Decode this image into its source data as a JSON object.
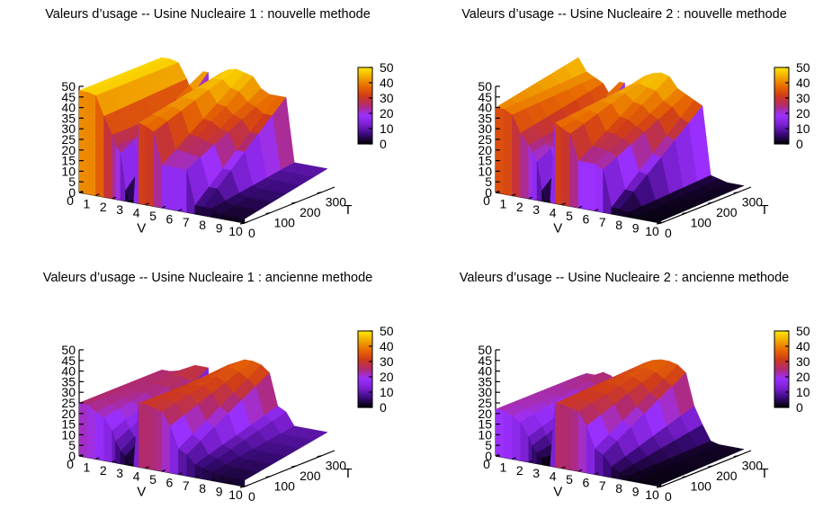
{
  "chart_data": [
    {
      "type": "surface3d",
      "title": "Valeurs d’usage -- Usine Nucleaire 1 : nouvelle methode",
      "xlabel": "V",
      "ylabel": "T",
      "zlabel": "",
      "xlim": [
        0,
        10
      ],
      "ylim": [
        0,
        350
      ],
      "zlim": [
        0,
        50
      ],
      "x_ticks": [
        "0",
        "1",
        "2",
        "3",
        "4",
        "5",
        "6",
        "7",
        "8",
        "9",
        "10"
      ],
      "y_ticks": [
        "0",
        "100",
        "200",
        "300"
      ],
      "z_ticks": [
        "0",
        "5",
        "10",
        "15",
        "20",
        "25",
        "30",
        "35",
        "40",
        "45",
        "50"
      ],
      "colorbar": {
        "ticks": [
          "0",
          "10",
          "20",
          "30",
          "40",
          "50"
        ],
        "range": [
          0,
          50
        ]
      },
      "profile_x": [
        0,
        0.5,
        1,
        1.5,
        2,
        2.2,
        2.5,
        2.8,
        3,
        3.3,
        3.6,
        4,
        4.5,
        5,
        5.5,
        6,
        6.5,
        7,
        7.5,
        8,
        8.5,
        9,
        10
      ],
      "surface_back": [
        48,
        48,
        47,
        40,
        30,
        28,
        45,
        45,
        0,
        0,
        46,
        48,
        49,
        48,
        47,
        42,
        40,
        40,
        40,
        10,
        10,
        10,
        10
      ],
      "surface_front": [
        48,
        48,
        47,
        38,
        30,
        25,
        22,
        5,
        0,
        0,
        38,
        37,
        35,
        20,
        20,
        20,
        20,
        4,
        4,
        4,
        2,
        2,
        2
      ]
    },
    {
      "type": "surface3d",
      "title": "Valeurs d’usage -- Usine Nucleaire 2 : nouvelle methode",
      "xlabel": "V",
      "ylabel": "T",
      "zlabel": "",
      "xlim": [
        0,
        10
      ],
      "ylim": [
        0,
        350
      ],
      "zlim": [
        0,
        50
      ],
      "x_ticks": [
        "0",
        "1",
        "2",
        "3",
        "4",
        "5",
        "6",
        "7",
        "8",
        "9",
        "10"
      ],
      "y_ticks": [
        "0",
        "100",
        "200",
        "300"
      ],
      "z_ticks": [
        "0",
        "5",
        "10",
        "15",
        "20",
        "25",
        "30",
        "35",
        "40",
        "45",
        "50"
      ],
      "colorbar": {
        "ticks": [
          "0",
          "10",
          "20",
          "30",
          "40",
          "50"
        ],
        "range": [
          0,
          50
        ]
      },
      "profile_x": [
        0,
        0.5,
        1,
        1.5,
        2,
        2.2,
        2.5,
        2.8,
        3,
        3.3,
        3.6,
        4,
        4.5,
        5,
        5.5,
        6,
        6.5,
        7,
        7.5,
        8,
        8.5,
        9,
        10
      ],
      "surface_back": [
        48,
        42,
        40,
        38,
        32,
        30,
        40,
        40,
        0,
        0,
        42,
        45,
        47,
        48,
        47,
        42,
        40,
        38,
        36,
        4,
        3,
        2,
        2
      ],
      "surface_front": [
        40,
        40,
        38,
        30,
        25,
        22,
        18,
        5,
        0,
        0,
        38,
        36,
        34,
        22,
        22,
        22,
        20,
        3,
        3,
        2,
        1,
        1,
        1
      ]
    },
    {
      "type": "surface3d",
      "title": "Valeurs d’usage -- Usine Nucleaire 1 : ancienne methode",
      "xlabel": "V",
      "ylabel": "T",
      "zlabel": "",
      "xlim": [
        0,
        10
      ],
      "ylim": [
        0,
        350
      ],
      "zlim": [
        0,
        50
      ],
      "x_ticks": [
        "0",
        "1",
        "2",
        "3",
        "4",
        "5",
        "6",
        "7",
        "8",
        "9",
        "10"
      ],
      "y_ticks": [
        "0",
        "100",
        "200",
        "300"
      ],
      "z_ticks": [
        "0",
        "5",
        "10",
        "15",
        "20",
        "25",
        "30",
        "35",
        "40",
        "45",
        "50"
      ],
      "colorbar": {
        "ticks": [
          "0",
          "10",
          "20",
          "30",
          "40",
          "50"
        ],
        "range": [
          0,
          50
        ]
      },
      "profile_x": [
        0,
        0.5,
        1,
        1.5,
        2,
        2.2,
        2.5,
        2.8,
        3,
        3.3,
        3.6,
        4,
        4.5,
        5,
        5.5,
        6,
        6.5,
        7,
        7.5,
        8,
        8.5,
        9,
        10
      ],
      "surface_back": [
        25,
        25,
        26,
        28,
        30,
        30,
        30,
        30,
        0,
        0,
        30,
        33,
        35,
        37,
        37,
        36,
        33,
        18,
        16,
        10,
        10,
        10,
        10
      ],
      "surface_front": [
        25,
        25,
        22,
        20,
        15,
        10,
        6,
        4,
        0,
        0,
        30,
        30,
        29,
        28,
        22,
        12,
        10,
        6,
        5,
        4,
        3,
        3,
        3
      ]
    },
    {
      "type": "surface3d",
      "title": "Valeurs d’usage -- Usine Nucleaire 2 : ancienne methode",
      "xlabel": "V",
      "ylabel": "T",
      "zlabel": "",
      "xlim": [
        0,
        10
      ],
      "ylim": [
        0,
        350
      ],
      "zlim": [
        0,
        50
      ],
      "x_ticks": [
        "0",
        "1",
        "2",
        "3",
        "4",
        "5",
        "6",
        "7",
        "8",
        "9",
        "10"
      ],
      "y_ticks": [
        "0",
        "100",
        "200",
        "300"
      ],
      "z_ticks": [
        "0",
        "5",
        "10",
        "15",
        "20",
        "25",
        "30",
        "35",
        "40",
        "45",
        "50"
      ],
      "colorbar": {
        "ticks": [
          "0",
          "10",
          "20",
          "30",
          "40",
          "50"
        ],
        "range": [
          0,
          50
        ]
      },
      "profile_x": [
        0,
        0.5,
        1,
        1.5,
        2,
        2.2,
        2.5,
        2.8,
        3,
        3.3,
        3.6,
        4,
        4.5,
        5,
        5.5,
        6,
        6.5,
        7,
        7.5,
        8,
        8.5,
        9,
        10
      ],
      "surface_back": [
        22,
        24,
        24,
        26,
        25,
        22,
        12,
        0,
        0,
        0,
        32,
        34,
        36,
        37,
        37,
        36,
        33,
        18,
        10,
        3,
        2,
        2,
        2
      ],
      "surface_front": [
        22,
        22,
        20,
        18,
        12,
        8,
        5,
        3,
        0,
        0,
        30,
        30,
        29,
        28,
        22,
        12,
        10,
        5,
        3,
        2,
        1,
        1,
        1
      ]
    }
  ],
  "colormap": [
    "#000000",
    "#3a0a7a",
    "#7a1fd0",
    "#9b30ff",
    "#b02a70",
    "#d03a1a",
    "#e86a00",
    "#f2a800",
    "#ffe800"
  ]
}
